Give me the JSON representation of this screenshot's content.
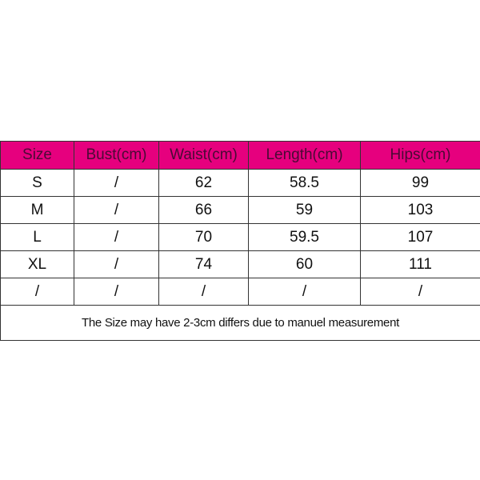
{
  "header_color": "#e6007e",
  "columns": [
    "Size",
    "Bust(cm)",
    "Waist(cm)",
    "Length(cm)",
    "Hips(cm)"
  ],
  "rows": [
    [
      "S",
      "/",
      "62",
      "58.5",
      "99"
    ],
    [
      "M",
      "/",
      "66",
      "59",
      "103"
    ],
    [
      "L",
      "/",
      "70",
      "59.5",
      "107"
    ],
    [
      "XL",
      "/",
      "74",
      "60",
      "111"
    ],
    [
      "/",
      "/",
      "/",
      "/",
      "/"
    ]
  ],
  "note": "The Size may have 2-3cm differs due to manuel measurement"
}
